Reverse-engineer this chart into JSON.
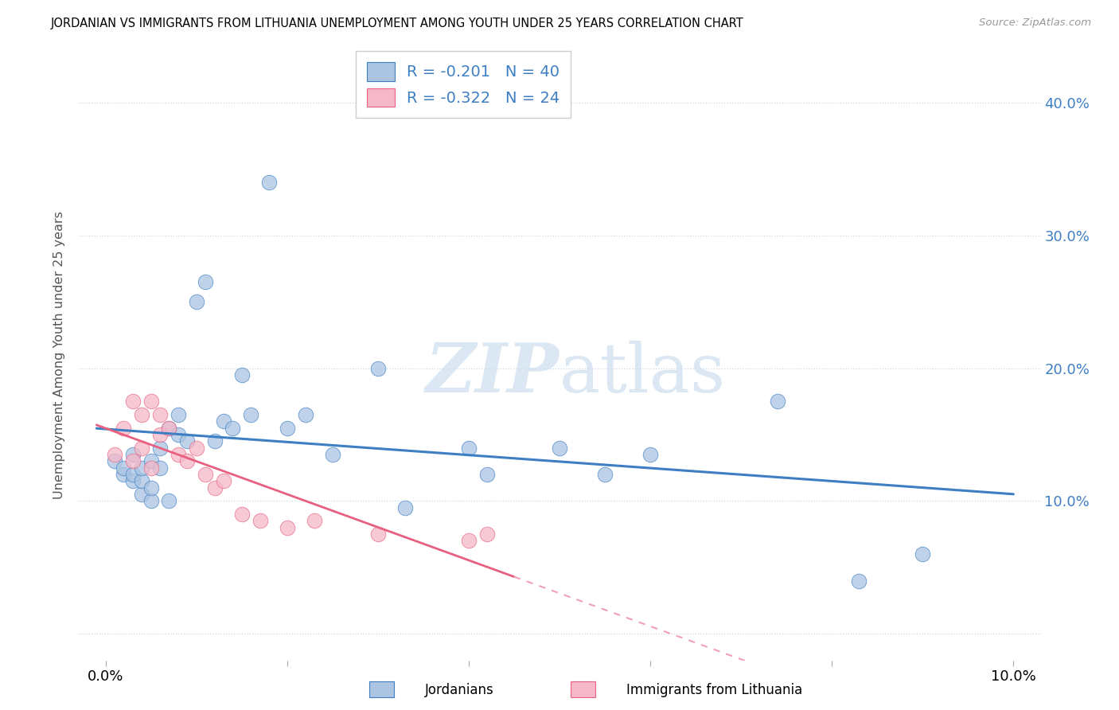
{
  "title": "JORDANIAN VS IMMIGRANTS FROM LITHUANIA UNEMPLOYMENT AMONG YOUTH UNDER 25 YEARS CORRELATION CHART",
  "source": "Source: ZipAtlas.com",
  "ylabel": "Unemployment Among Youth under 25 years",
  "y_ticks": [
    0.0,
    0.1,
    0.2,
    0.3,
    0.4
  ],
  "x_ticks": [
    0.0,
    0.02,
    0.04,
    0.06,
    0.08,
    0.1
  ],
  "xlim": [
    -0.003,
    0.103
  ],
  "ylim": [
    -0.02,
    0.44
  ],
  "jordanians_x": [
    0.001,
    0.002,
    0.002,
    0.003,
    0.003,
    0.003,
    0.004,
    0.004,
    0.004,
    0.005,
    0.005,
    0.005,
    0.006,
    0.006,
    0.007,
    0.007,
    0.008,
    0.008,
    0.009,
    0.01,
    0.011,
    0.012,
    0.013,
    0.014,
    0.015,
    0.016,
    0.018,
    0.02,
    0.022,
    0.025,
    0.03,
    0.033,
    0.04,
    0.042,
    0.05,
    0.055,
    0.06,
    0.074,
    0.083,
    0.09
  ],
  "jordanians_y": [
    0.13,
    0.12,
    0.125,
    0.115,
    0.12,
    0.135,
    0.105,
    0.115,
    0.125,
    0.1,
    0.11,
    0.13,
    0.125,
    0.14,
    0.1,
    0.155,
    0.15,
    0.165,
    0.145,
    0.25,
    0.265,
    0.145,
    0.16,
    0.155,
    0.195,
    0.165,
    0.34,
    0.155,
    0.165,
    0.135,
    0.2,
    0.095,
    0.14,
    0.12,
    0.14,
    0.12,
    0.135,
    0.175,
    0.04,
    0.06
  ],
  "lithuania_x": [
    0.001,
    0.002,
    0.003,
    0.003,
    0.004,
    0.004,
    0.005,
    0.005,
    0.006,
    0.006,
    0.007,
    0.008,
    0.009,
    0.01,
    0.011,
    0.012,
    0.013,
    0.015,
    0.017,
    0.02,
    0.023,
    0.03,
    0.04,
    0.042
  ],
  "lithuania_y": [
    0.135,
    0.155,
    0.13,
    0.175,
    0.14,
    0.165,
    0.125,
    0.175,
    0.15,
    0.165,
    0.155,
    0.135,
    0.13,
    0.14,
    0.12,
    0.11,
    0.115,
    0.09,
    0.085,
    0.08,
    0.085,
    0.075,
    0.07,
    0.075
  ],
  "jordanians_R": -0.201,
  "jordanians_N": 40,
  "lithuania_R": -0.322,
  "lithuania_N": 24,
  "blue_scatter_color": "#aac4e2",
  "pink_scatter_color": "#f5b8c8",
  "blue_line_color": "#3e7fc4",
  "pink_line_color": "#e86080",
  "pink_dash_color": "#f0a0b8",
  "watermark_color": "#ccdff0",
  "legend_label1": "Jordanians",
  "legend_label2": "Immigrants from Lithuania"
}
